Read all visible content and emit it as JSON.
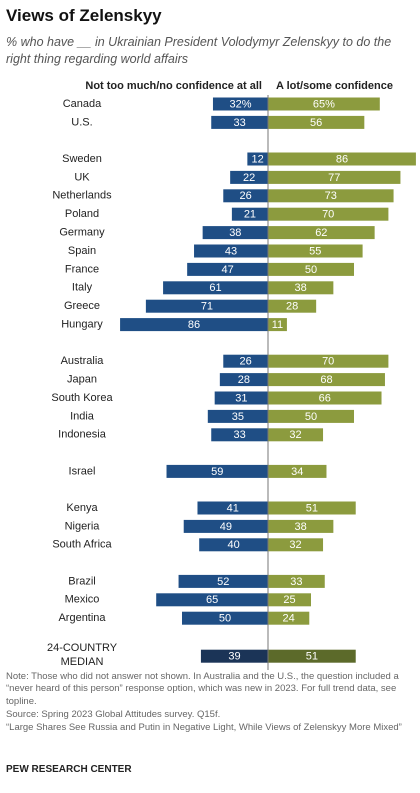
{
  "chart_data": {
    "type": "diverging_bar",
    "title": "Views of Zelenskyy",
    "subtitle": "% who have __ in Ukrainian President Volodymyr Zelenskyy to do the right thing regarding world affairs",
    "series": [
      {
        "name": "Not too much/no confidence at all",
        "color": "#1f4e85"
      },
      {
        "name": "A lot/some confidence",
        "color": "#8c9b3e"
      }
    ],
    "groups": [
      {
        "categories": [
          "Canada",
          "U.S."
        ],
        "values": [
          [
            32,
            33
          ],
          [
            65,
            56
          ]
        ],
        "value_labels": [
          [
            "32%",
            "33"
          ],
          [
            "65%",
            "56"
          ]
        ]
      },
      {
        "categories": [
          "Sweden",
          "UK",
          "Netherlands",
          "Poland",
          "Germany",
          "Spain",
          "France",
          "Italy",
          "Greece",
          "Hungary"
        ],
        "values": [
          [
            12,
            22,
            26,
            21,
            38,
            43,
            47,
            61,
            71,
            86
          ],
          [
            86,
            77,
            73,
            70,
            62,
            55,
            50,
            38,
            28,
            11
          ]
        ]
      },
      {
        "categories": [
          "Australia",
          "Japan",
          "South Korea",
          "India",
          "Indonesia"
        ],
        "values": [
          [
            26,
            28,
            31,
            35,
            33
          ],
          [
            70,
            68,
            66,
            50,
            32
          ]
        ]
      },
      {
        "categories": [
          "Israel"
        ],
        "values": [
          [
            59
          ],
          [
            34
          ]
        ]
      },
      {
        "categories": [
          "Kenya",
          "Nigeria",
          "South Africa"
        ],
        "values": [
          [
            41,
            49,
            40
          ],
          [
            51,
            38,
            32
          ]
        ]
      },
      {
        "categories": [
          "Brazil",
          "Mexico",
          "Argentina"
        ],
        "values": [
          [
            52,
            65,
            50
          ],
          [
            33,
            25,
            24
          ]
        ]
      }
    ],
    "median": {
      "label": [
        "24-COUNTRY",
        "MEDIAN"
      ],
      "values": [
        39,
        51
      ],
      "colors": [
        "#1b3457",
        "#5c6a2a"
      ]
    },
    "notes": [
      "Note: Those who did not answer not shown. In Australia and the U.S., the question included a “never heard of this person” response option, which was new in 2023. For full trend data, see topline.",
      "Source: Spring 2023 Global Attitudes survey. Q15f.",
      "“Large Shares See Russia and Putin in Negative Light, While Views of Zelenskyy More Mixed”"
    ],
    "source": "PEW RESEARCH CENTER"
  }
}
